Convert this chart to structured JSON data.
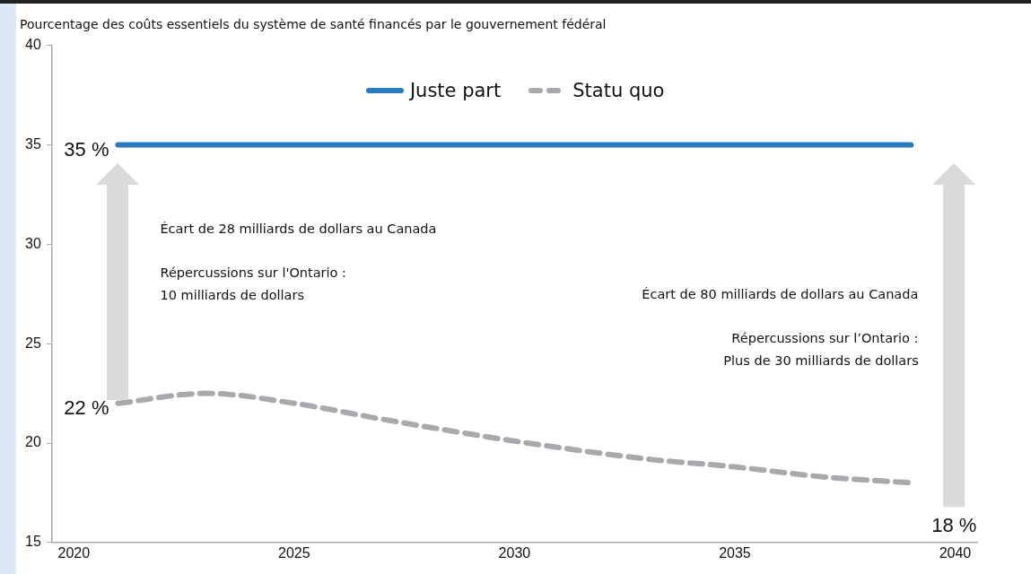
{
  "chart_data": {
    "type": "line",
    "title": "Pourcentage des coûts essentiels du système de santé financés par le gouvernement fédéral",
    "xlim": [
      2019.5,
      2040.5
    ],
    "xticks": [
      2020,
      2025,
      2030,
      2035,
      2040
    ],
    "ylim": [
      15,
      40
    ],
    "yticks": [
      15,
      20,
      25,
      30,
      35,
      40
    ],
    "grid": false,
    "legend": "top",
    "marker": "none",
    "series": [
      {
        "name": "Juste part",
        "color": "#2a7abf",
        "line_style": "solid",
        "x": [
          2021,
          2039
        ],
        "values": [
          35,
          35
        ],
        "value_labels": [
          "35 %",
          null
        ]
      },
      {
        "name": "Statu quo",
        "color": "#a7a9ac",
        "line_style": "dashed",
        "x": [
          2021,
          2023,
          2025,
          2027,
          2030,
          2033,
          2035,
          2037,
          2039
        ],
        "values": [
          22,
          22.5,
          22,
          21.2,
          20.1,
          19.2,
          18.8,
          18.3,
          18
        ],
        "value_labels": [
          "22 %",
          null,
          null,
          null,
          null,
          null,
          null,
          null,
          "18 %"
        ]
      }
    ],
    "annotations": [
      "Écart de 28 milliards de dollars au Canada",
      "Répercussions sur l'Ontario :",
      "10 milliards de dollars",
      "Écart de 80 milliards de dollars au Canada",
      "Répercussions sur l’Ontario :",
      "Plus de 30 milliards de dollars"
    ]
  }
}
